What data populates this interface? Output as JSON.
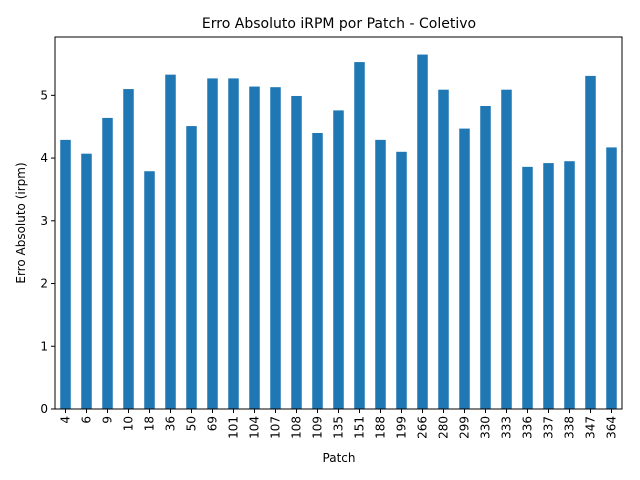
{
  "chart_data": {
    "type": "bar",
    "title": "Erro Absoluto iRPM por Patch - Coletivo",
    "xlabel": "Patch",
    "ylabel": "Erro Absoluto (irpm)",
    "categories": [
      "4",
      "6",
      "9",
      "10",
      "18",
      "36",
      "50",
      "69",
      "101",
      "104",
      "107",
      "108",
      "109",
      "135",
      "151",
      "188",
      "199",
      "266",
      "280",
      "299",
      "330",
      "333",
      "336",
      "337",
      "338",
      "347",
      "364"
    ],
    "values": [
      4.29,
      4.07,
      4.64,
      5.1,
      3.79,
      5.33,
      4.51,
      5.27,
      5.27,
      5.14,
      5.13,
      4.99,
      4.4,
      4.76,
      5.53,
      4.29,
      4.1,
      5.65,
      5.09,
      4.47,
      4.83,
      5.09,
      3.86,
      3.92,
      3.95,
      5.31,
      4.17
    ],
    "ylim": [
      0,
      5.93
    ],
    "yticks": [
      0,
      1,
      2,
      3,
      4,
      5
    ],
    "bar_color": "#1f77b4",
    "grid": false,
    "legend": "none"
  }
}
